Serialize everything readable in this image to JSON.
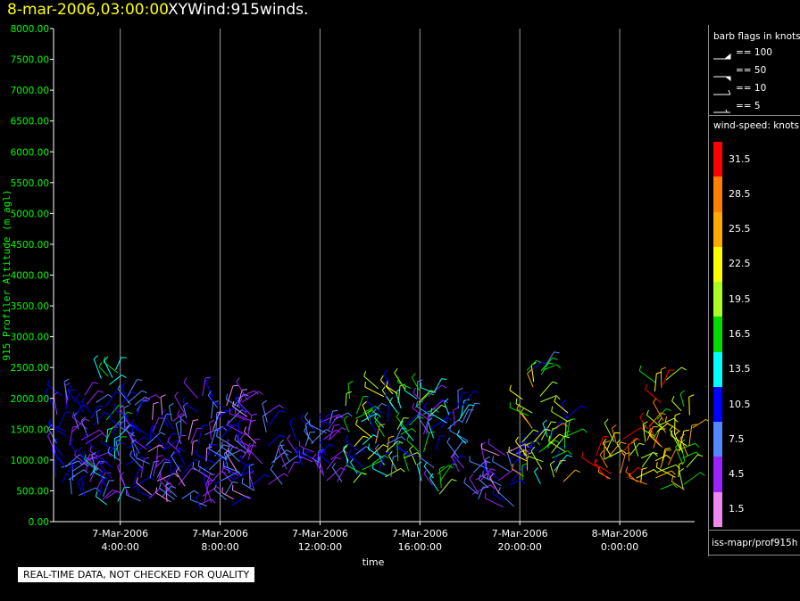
{
  "header": {
    "time": "8-mar-2006,03:00:00",
    "product": "XYWind:915winds."
  },
  "legend": {
    "barb_title": "barb flags in knots",
    "barbs": [
      {
        "label": "== 100"
      },
      {
        "label": "== 50"
      },
      {
        "label": "== 10"
      },
      {
        "label": "== 5"
      }
    ],
    "speed_title": "wind-speed: knots",
    "colorbar": [
      {
        "label": "31.5",
        "color": "#ff0000"
      },
      {
        "label": "28.5",
        "color": "#ff8000"
      },
      {
        "label": "25.5",
        "color": "#ffaa00"
      },
      {
        "label": "22.5",
        "color": "#ffff00"
      },
      {
        "label": "19.5",
        "color": "#aaff22"
      },
      {
        "label": "16.5",
        "color": "#00dd00"
      },
      {
        "label": "13.5",
        "color": "#00ffff"
      },
      {
        "label": "10.5",
        "color": "#0000ff"
      },
      {
        "label": "7.5",
        "color": "#5588ff"
      },
      {
        "label": "4.5",
        "color": "#9922ff"
      },
      {
        "label": "1.5",
        "color": "#ee88ee"
      }
    ],
    "source": "iss-mapr/prof915h"
  },
  "note": "REAL-TIME DATA, NOT CHECKED FOR QUALITY",
  "chart_data": {
    "type": "scatter",
    "title": "8-mar-2006,03:00:00  XYWind:915winds.",
    "xlabel": "time",
    "ylabel": "915 Profiler Altitude (m agl)",
    "ylim": [
      0,
      8000
    ],
    "xlim": [
      "7-Mar-2006 01:20",
      "8-Mar-2006 03:00"
    ],
    "yticks": [
      "0.00",
      "500.00",
      "1000.00",
      "1500.00",
      "2000.00",
      "2500.00",
      "3000.00",
      "3500.00",
      "4000.00",
      "4500.00",
      "5000.00",
      "5500.00",
      "6000.00",
      "6500.00",
      "7000.00",
      "7500.00",
      "8000.00"
    ],
    "xticks": [
      {
        "line1": "7-Mar-2006",
        "line2": "4:00:00",
        "hour": 4
      },
      {
        "line1": "7-Mar-2006",
        "line2": "8:00:00",
        "hour": 8
      },
      {
        "line1": "7-Mar-2006",
        "line2": "12:00:00",
        "hour": 12
      },
      {
        "line1": "7-Mar-2006",
        "line2": "16:00:00",
        "hour": 16
      },
      {
        "line1": "7-Mar-2006",
        "line2": "20:00:00",
        "hour": 20
      },
      {
        "line1": "8-Mar-2006",
        "line2": "0:00:00",
        "hour": 24
      }
    ],
    "grid": "vertical lines at x ticks",
    "series_note": "wind barbs colored by wind speed (knots)",
    "profiles": [
      {
        "hour": 1.5,
        "z_min": 300,
        "z_max": 2200,
        "speed_min": 3,
        "speed_max": 12
      },
      {
        "hour": 2.5,
        "z_min": 200,
        "z_max": 2100,
        "speed_min": 3,
        "speed_max": 12
      },
      {
        "hour": 3.5,
        "z_min": 200,
        "z_max": 2500,
        "speed_min": 3,
        "speed_max": 18
      },
      {
        "hour": 4.5,
        "z_min": 300,
        "z_max": 2100,
        "speed_min": 3,
        "speed_max": 12
      },
      {
        "hour": 5.5,
        "z_min": 300,
        "z_max": 1900,
        "speed_min": 2,
        "speed_max": 11
      },
      {
        "hour": 6.5,
        "z_min": 300,
        "z_max": 1800,
        "speed_min": 2,
        "speed_max": 10
      },
      {
        "hour": 7.5,
        "z_min": 200,
        "z_max": 2150,
        "speed_min": 2,
        "speed_max": 12
      },
      {
        "hour": 8.5,
        "z_min": 200,
        "z_max": 2100,
        "speed_min": 2,
        "speed_max": 12
      },
      {
        "hour": 9.5,
        "z_min": 300,
        "z_max": 2000,
        "speed_min": 2,
        "speed_max": 10
      },
      {
        "hour": 10.5,
        "z_min": 600,
        "z_max": 1100,
        "speed_min": 3,
        "speed_max": 8
      },
      {
        "hour": 11.5,
        "z_min": 600,
        "z_max": 1700,
        "speed_min": 3,
        "speed_max": 12
      },
      {
        "hour": 12.5,
        "z_min": 600,
        "z_max": 1700,
        "speed_min": 3,
        "speed_max": 12
      },
      {
        "hour": 13.5,
        "z_min": 600,
        "z_max": 2000,
        "speed_min": 6,
        "speed_max": 22
      },
      {
        "hour": 14.5,
        "z_min": 700,
        "z_max": 2200,
        "speed_min": 6,
        "speed_max": 26
      },
      {
        "hour": 15.5,
        "z_min": 800,
        "z_max": 2300,
        "speed_min": 6,
        "speed_max": 22
      },
      {
        "hour": 16.5,
        "z_min": 400,
        "z_max": 2100,
        "speed_min": 4,
        "speed_max": 20
      },
      {
        "hour": 17.5,
        "z_min": 800,
        "z_max": 1900,
        "speed_min": 4,
        "speed_max": 14
      },
      {
        "hour": 18.5,
        "z_min": 300,
        "z_max": 1000,
        "speed_min": 2,
        "speed_max": 8
      },
      {
        "hour": 19.5,
        "z_min": 200,
        "z_max": 1300,
        "speed_min": 2,
        "speed_max": 12
      },
      {
        "hour": 20.5,
        "z_min": 500,
        "z_max": 2500,
        "speed_min": 8,
        "speed_max": 26
      },
      {
        "hour": 21.5,
        "z_min": 600,
        "z_max": 1800,
        "speed_min": 10,
        "speed_max": 26
      },
      {
        "hour": 23.5,
        "z_min": 500,
        "z_max": 1300,
        "speed_min": 18,
        "speed_max": 32
      },
      {
        "hour": 24.5,
        "z_min": 600,
        "z_max": 1400,
        "speed_min": 18,
        "speed_max": 32
      },
      {
        "hour": 25.5,
        "z_min": 500,
        "z_max": 2300,
        "speed_min": 16,
        "speed_max": 32
      },
      {
        "hour": 26.5,
        "z_min": 500,
        "z_max": 1900,
        "speed_min": 16,
        "speed_max": 26
      }
    ]
  }
}
